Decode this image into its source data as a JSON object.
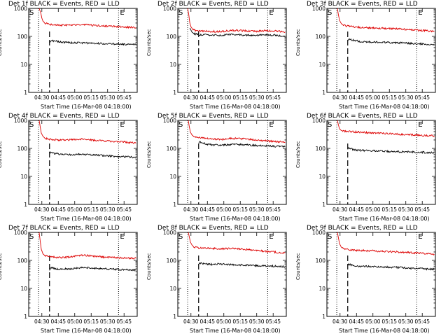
{
  "colors": {
    "events": "#000000",
    "lld": "#dd0000",
    "axis": "#000000",
    "background": "#ffffff"
  },
  "panel_labels": {
    "start_marker": "S",
    "end_marker": "E"
  },
  "chart_data": [
    {
      "type": "line",
      "title": "Det 1f BLACK = Events, RED = LLD",
      "xlabel": "Start Time (16-Mar-08 04:18:00)",
      "ylabel": "Counts/sec",
      "yscale": "log",
      "ylim": [
        1,
        1000
      ],
      "y_ticks": [
        "1",
        "10",
        "100",
        "1000"
      ],
      "x_ticks": [
        "04:30",
        "04:45",
        "05:00",
        "05:15",
        "05:30",
        "05:45"
      ],
      "x_minutes_after_start": [
        12,
        27,
        42,
        57,
        72,
        87
      ],
      "xlim_minutes": [
        0,
        99
      ],
      "dotted_lines_minutes": [
        9,
        82
      ],
      "dashed_line_minutes": 19,
      "series": [
        {
          "name": "BLACK = Events",
          "color": "#000000",
          "x": [
            19,
            20,
            25,
            30,
            40,
            50,
            60,
            70,
            80,
            90,
            98
          ],
          "y": [
            60,
            70,
            68,
            62,
            60,
            58,
            57,
            55,
            54,
            52,
            50
          ]
        },
        {
          "name": "RED = LLD",
          "color": "#dd0000",
          "x": [
            9.5,
            11,
            12,
            13,
            15,
            20,
            30,
            40,
            50,
            60,
            70,
            80,
            90,
            98
          ],
          "y": [
            1000,
            700,
            450,
            350,
            300,
            270,
            250,
            260,
            265,
            245,
            235,
            225,
            215,
            205
          ]
        }
      ]
    },
    {
      "type": "line",
      "title": "Det 2f BLACK = Events, RED = LLD",
      "xlabel": "Start Time (16-Mar-08 04:18:00)",
      "ylabel": "Counts/sec",
      "yscale": "log",
      "ylim": [
        1,
        1000
      ],
      "y_ticks": [
        "1",
        "10",
        "100",
        "1000"
      ],
      "x_ticks": [
        "04:30",
        "04:45",
        "05:00",
        "05:15",
        "05:30",
        "05:45"
      ],
      "x_minutes_after_start": [
        12,
        27,
        42,
        57,
        72,
        87
      ],
      "xlim_minutes": [
        0,
        99
      ],
      "dotted_lines_minutes": [
        9,
        82
      ],
      "dashed_line_minutes": 19,
      "series": [
        {
          "name": "BLACK = Events",
          "color": "#000000",
          "x": [
            11,
            13,
            15,
            20,
            30,
            40,
            50,
            60,
            70,
            80,
            90,
            98
          ],
          "y": [
            200,
            140,
            125,
            115,
            112,
            110,
            118,
            112,
            108,
            115,
            110,
            100
          ]
        },
        {
          "name": "RED = LLD",
          "color": "#dd0000",
          "x": [
            9,
            10,
            11,
            12,
            14,
            20,
            30,
            40,
            50,
            60,
            70,
            80,
            90,
            98
          ],
          "y": [
            1000,
            600,
            300,
            220,
            170,
            155,
            150,
            150,
            165,
            160,
            150,
            160,
            155,
            145
          ]
        }
      ]
    },
    {
      "type": "line",
      "title": "Det 3f BLACK = Events, RED = LLD",
      "xlabel": "Start Time (16-Mar-08 04:18:00)",
      "ylabel": "Counts/sec",
      "yscale": "log",
      "ylim": [
        1,
        1000
      ],
      "y_ticks": [
        "1",
        "10",
        "100",
        "1000"
      ],
      "x_ticks": [
        "04:30",
        "04:45",
        "05:00",
        "05:15",
        "05:30",
        "05:45"
      ],
      "x_minutes_after_start": [
        12,
        27,
        42,
        57,
        72,
        87
      ],
      "xlim_minutes": [
        0,
        99
      ],
      "dotted_lines_minutes": [
        9,
        82
      ],
      "dashed_line_minutes": 19,
      "series": [
        {
          "name": "BLACK = Events",
          "color": "#000000",
          "x": [
            19,
            20,
            25,
            30,
            40,
            50,
            60,
            70,
            80,
            90,
            98
          ],
          "y": [
            70,
            80,
            72,
            66,
            63,
            62,
            60,
            58,
            55,
            53,
            50
          ]
        },
        {
          "name": "RED = LLD",
          "color": "#dd0000",
          "x": [
            9.5,
            10.5,
            11.5,
            13,
            15,
            20,
            30,
            40,
            50,
            60,
            70,
            80,
            90,
            98
          ],
          "y": [
            1000,
            600,
            380,
            290,
            250,
            230,
            210,
            200,
            195,
            190,
            180,
            170,
            160,
            150
          ]
        }
      ]
    },
    {
      "type": "line",
      "title": "Det 4f BLACK = Events, RED = LLD",
      "xlabel": "Start Time (16-Mar-08 04:18:00)",
      "ylabel": "Counts/sec",
      "yscale": "log",
      "ylim": [
        1,
        1000
      ],
      "y_ticks": [
        "1",
        "10",
        "100",
        "1000"
      ],
      "x_ticks": [
        "04:30",
        "04:45",
        "05:00",
        "05:15",
        "05:30",
        "05:45"
      ],
      "x_minutes_after_start": [
        12,
        27,
        42,
        57,
        72,
        87
      ],
      "xlim_minutes": [
        0,
        99
      ],
      "dotted_lines_minutes": [
        9,
        82
      ],
      "dashed_line_minutes": 19,
      "series": [
        {
          "name": "BLACK = Events",
          "color": "#000000",
          "x": [
            19,
            20,
            25,
            30,
            40,
            50,
            60,
            70,
            80,
            90,
            98
          ],
          "y": [
            75,
            70,
            65,
            62,
            60,
            62,
            58,
            55,
            52,
            50,
            47
          ]
        },
        {
          "name": "RED = LLD",
          "color": "#dd0000",
          "x": [
            9.5,
            10.5,
            11.5,
            13,
            15,
            20,
            30,
            40,
            50,
            60,
            70,
            80,
            90,
            98
          ],
          "y": [
            1000,
            600,
            350,
            270,
            230,
            210,
            195,
            205,
            215,
            195,
            185,
            175,
            165,
            155
          ]
        }
      ]
    },
    {
      "type": "line",
      "title": "Det 5f BLACK = Events, RED = LLD",
      "xlabel": "Start Time (16-Mar-08 04:18:00)",
      "ylabel": "Counts/sec",
      "yscale": "log",
      "ylim": [
        1,
        1000
      ],
      "y_ticks": [
        "1",
        "10",
        "100",
        "1000"
      ],
      "x_ticks": [
        "04:30",
        "04:45",
        "05:00",
        "05:15",
        "05:30",
        "05:45"
      ],
      "x_minutes_after_start": [
        12,
        27,
        42,
        57,
        72,
        87
      ],
      "xlim_minutes": [
        0,
        99
      ],
      "dotted_lines_minutes": [
        9,
        82
      ],
      "dashed_line_minutes": 19,
      "series": [
        {
          "name": "BLACK = Events",
          "color": "#000000",
          "x": [
            19,
            20,
            25,
            30,
            40,
            50,
            60,
            70,
            80,
            90,
            98
          ],
          "y": [
            160,
            170,
            145,
            135,
            128,
            140,
            135,
            128,
            122,
            118,
            115
          ]
        },
        {
          "name": "RED = LLD",
          "color": "#dd0000",
          "x": [
            9.5,
            10.5,
            11.5,
            13,
            15,
            20,
            30,
            40,
            50,
            60,
            70,
            80,
            90,
            98
          ],
          "y": [
            1000,
            600,
            380,
            300,
            260,
            240,
            220,
            210,
            230,
            220,
            200,
            185,
            175,
            170
          ]
        }
      ]
    },
    {
      "type": "line",
      "title": "Det 6f BLACK = Events, RED = LLD",
      "xlabel": "Start Time (16-Mar-08 04:18:00)",
      "ylabel": "Counts/sec",
      "yscale": "log",
      "ylim": [
        1,
        1000
      ],
      "y_ticks": [
        "1",
        "10",
        "100",
        "1000"
      ],
      "x_ticks": [
        "04:30",
        "04:45",
        "05:00",
        "05:15",
        "05:30",
        "05:45"
      ],
      "x_minutes_after_start": [
        12,
        27,
        42,
        57,
        72,
        87
      ],
      "xlim_minutes": [
        0,
        99
      ],
      "dotted_lines_minutes": [
        9,
        82
      ],
      "dashed_line_minutes": 19,
      "series": [
        {
          "name": "BLACK = Events",
          "color": "#000000",
          "x": [
            19,
            20,
            25,
            30,
            40,
            50,
            60,
            70,
            80,
            90,
            98
          ],
          "y": [
            95,
            100,
            90,
            85,
            82,
            80,
            78,
            76,
            74,
            72,
            70
          ]
        },
        {
          "name": "RED = LLD",
          "color": "#dd0000",
          "x": [
            9.5,
            10.5,
            11.5,
            13,
            15,
            20,
            30,
            40,
            50,
            60,
            70,
            80,
            90,
            98
          ],
          "y": [
            1000,
            700,
            500,
            440,
            420,
            400,
            380,
            360,
            345,
            330,
            315,
            300,
            290,
            280
          ]
        }
      ]
    },
    {
      "type": "line",
      "title": "Det 7f BLACK = Events, RED = LLD",
      "xlabel": "Start Time (16-Mar-08 04:18:00)",
      "ylabel": "Counts/sec",
      "yscale": "log",
      "ylim": [
        1,
        1000
      ],
      "y_ticks": [
        "1",
        "10",
        "100",
        "1000"
      ],
      "x_ticks": [
        "04:30",
        "04:45",
        "05:00",
        "05:15",
        "05:30",
        "05:45"
      ],
      "x_minutes_after_start": [
        12,
        27,
        42,
        57,
        72,
        87
      ],
      "xlim_minutes": [
        0,
        99
      ],
      "dotted_lines_minutes": [
        9,
        82
      ],
      "dashed_line_minutes": 19,
      "series": [
        {
          "name": "BLACK = Events",
          "color": "#000000",
          "x": [
            19,
            20,
            25,
            30,
            40,
            50,
            60,
            70,
            80,
            90,
            98
          ],
          "y": [
            45,
            55,
            50,
            48,
            52,
            56,
            52,
            50,
            48,
            46,
            45
          ]
        },
        {
          "name": "RED = LLD",
          "color": "#dd0000",
          "x": [
            9.5,
            10.5,
            11.5,
            13,
            15,
            20,
            30,
            40,
            50,
            60,
            70,
            80,
            90,
            98
          ],
          "y": [
            1000,
            500,
            250,
            170,
            150,
            135,
            125,
            135,
            155,
            140,
            130,
            125,
            120,
            118
          ]
        }
      ]
    },
    {
      "type": "line",
      "title": "Det 8f BLACK = Events, RED = LLD",
      "xlabel": "Start Time (16-Mar-08 04:18:00)",
      "ylabel": "Counts/sec",
      "yscale": "log",
      "ylim": [
        1,
        1000
      ],
      "y_ticks": [
        "1",
        "10",
        "100",
        "1000"
      ],
      "x_ticks": [
        "04:30",
        "04:45",
        "05:00",
        "05:15",
        "05:30",
        "05:45"
      ],
      "x_minutes_after_start": [
        12,
        27,
        42,
        57,
        72,
        87
      ],
      "xlim_minutes": [
        0,
        99
      ],
      "dotted_lines_minutes": [
        9,
        82
      ],
      "dashed_line_minutes": 19,
      "series": [
        {
          "name": "BLACK = Events",
          "color": "#000000",
          "x": [
            19,
            20,
            25,
            30,
            40,
            50,
            60,
            70,
            80,
            90,
            98
          ],
          "y": [
            70,
            80,
            75,
            72,
            75,
            70,
            68,
            66,
            64,
            62,
            60
          ]
        },
        {
          "name": "RED = LLD",
          "color": "#dd0000",
          "x": [
            9.5,
            10.5,
            11.5,
            13,
            15,
            20,
            30,
            40,
            50,
            60,
            70,
            80,
            90,
            98
          ],
          "y": [
            1000,
            700,
            450,
            350,
            300,
            280,
            270,
            260,
            270,
            250,
            230,
            210,
            195,
            185
          ]
        }
      ]
    },
    {
      "type": "line",
      "title": "Det 9f BLACK = Events, RED = LLD",
      "xlabel": "Start Time (16-Mar-08 04:18:00)",
      "ylabel": "Counts/sec",
      "yscale": "log",
      "ylim": [
        1,
        1000
      ],
      "y_ticks": [
        "1",
        "10",
        "100",
        "1000"
      ],
      "x_ticks": [
        "04:30",
        "04:45",
        "05:00",
        "05:15",
        "05:30",
        "05:45"
      ],
      "x_minutes_after_start": [
        12,
        27,
        42,
        57,
        72,
        87
      ],
      "xlim_minutes": [
        0,
        99
      ],
      "dotted_lines_minutes": [
        9,
        82
      ],
      "dashed_line_minutes": 19,
      "series": [
        {
          "name": "BLACK = Events",
          "color": "#000000",
          "x": [
            19,
            20,
            25,
            30,
            40,
            50,
            60,
            70,
            80,
            90,
            98
          ],
          "y": [
            65,
            72,
            66,
            62,
            60,
            58,
            57,
            55,
            52,
            50,
            48
          ]
        },
        {
          "name": "RED = LLD",
          "color": "#dd0000",
          "x": [
            9.5,
            10.5,
            11.5,
            13,
            15,
            20,
            30,
            40,
            50,
            60,
            70,
            80,
            90,
            98
          ],
          "y": [
            1000,
            650,
            400,
            300,
            260,
            240,
            225,
            220,
            210,
            205,
            195,
            185,
            175,
            165
          ]
        }
      ]
    }
  ]
}
